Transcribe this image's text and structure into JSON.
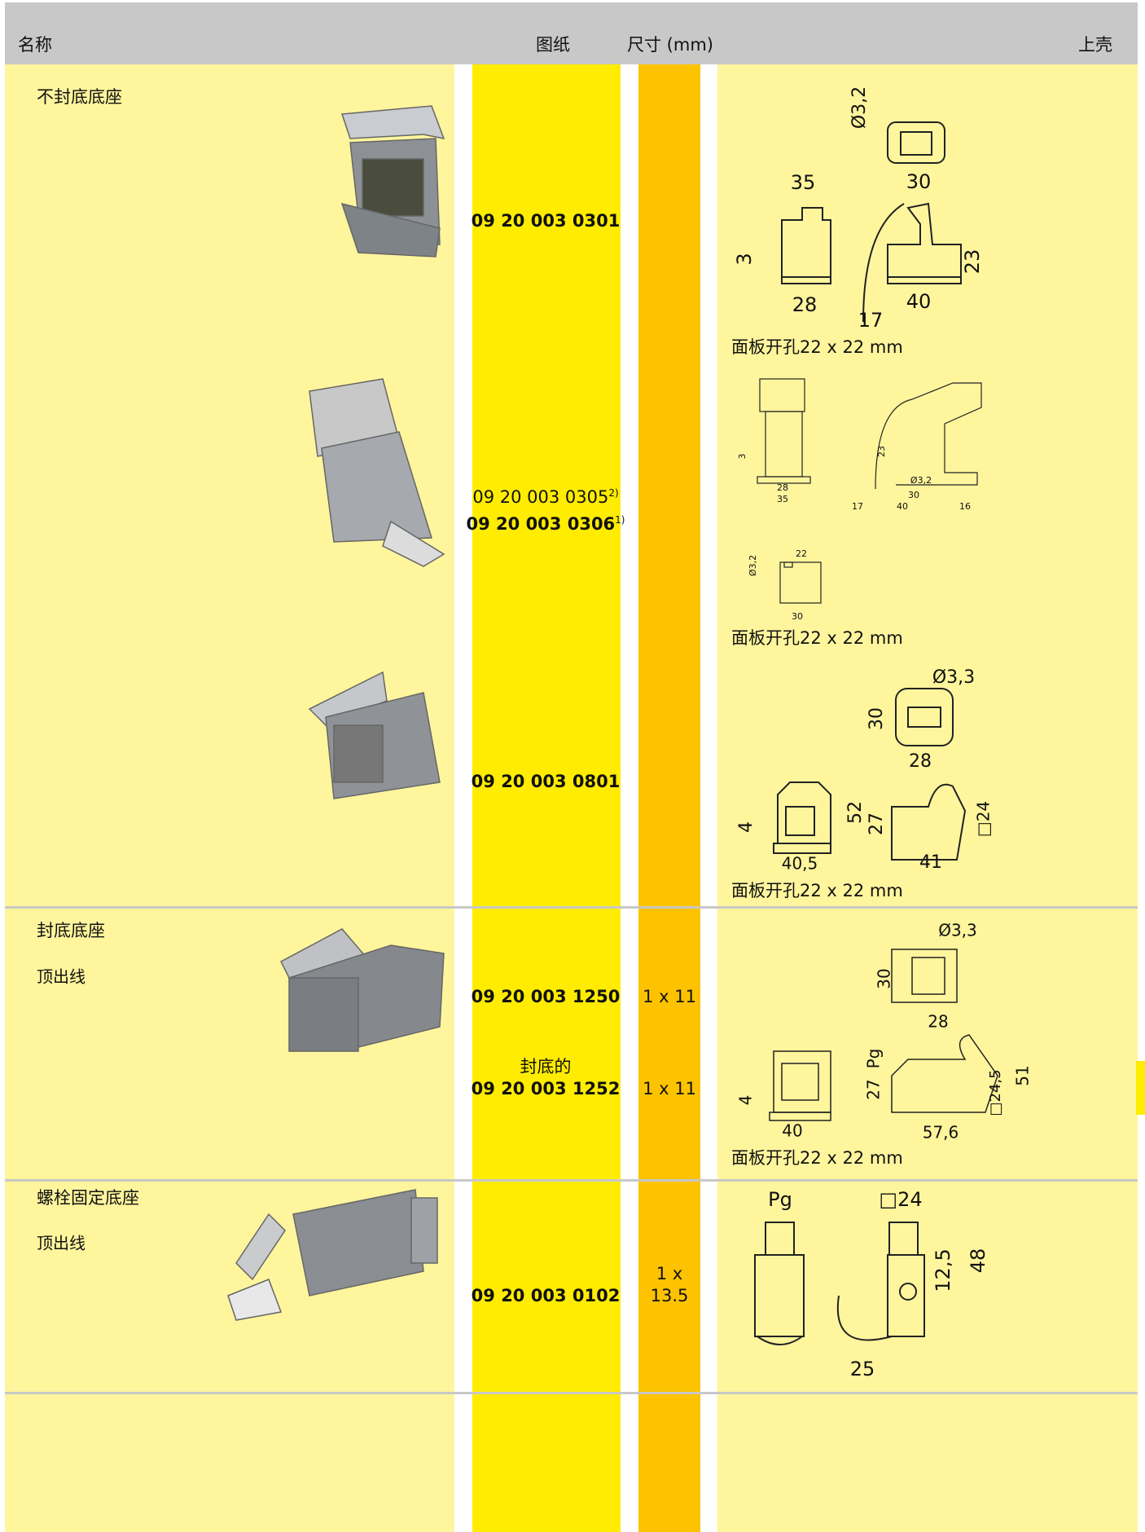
{
  "header": {
    "name": "名称",
    "drawing": "图纸",
    "dimensions": "尺寸 (mm)",
    "housing": "上壳"
  },
  "rows": [
    {
      "title": "不封底底座",
      "parts": [
        {
          "number": "09 20 003 0301"
        }
      ],
      "drawing_labels": [
        "Ø3,2",
        "30",
        "35",
        "3",
        "23",
        "28",
        "40",
        "17"
      ],
      "cutout": "面板开孔22 x 22 mm"
    },
    {
      "parts": [
        {
          "number": "09 20 003 0305",
          "note": "2)"
        },
        {
          "number": "09 20 003 0306",
          "note": "1)"
        }
      ],
      "drawing_labels": [
        "3",
        "28",
        "35",
        "23",
        "Ø3,2",
        "30",
        "17",
        "40",
        "16",
        "Ø3,2",
        "22",
        "30"
      ],
      "cutout": "面板开孔22 x 22 mm"
    },
    {
      "parts": [
        {
          "number": "09 20 003 0801"
        }
      ],
      "drawing_labels": [
        "Ø3,3",
        "30",
        "28",
        "52",
        "27",
        "□24",
        "4",
        "40,5",
        "41"
      ],
      "cutout": "面板开孔22 x 22 mm"
    },
    {
      "title": "封底底座",
      "subtitle": "顶出线",
      "parts": [
        {
          "number": "09 20 003 1250",
          "size": "1 x 11"
        },
        {
          "label": "封底的",
          "number": "09 20 003 1252",
          "size": "1 x 11"
        }
      ],
      "drawing_labels": [
        "Ø3,3",
        "30",
        "28",
        "Pg",
        "27",
        "□24,5",
        "51",
        "4",
        "40",
        "57,6"
      ],
      "cutout": "面板开孔22 x 22 mm"
    },
    {
      "title": "螺栓固定底座",
      "subtitle": "顶出线",
      "parts": [
        {
          "number": "09 20 003 0102",
          "size": "1 x 13.5"
        }
      ],
      "drawing_labels": [
        "Pg",
        "□24",
        "12,5",
        "48",
        "25"
      ]
    }
  ]
}
